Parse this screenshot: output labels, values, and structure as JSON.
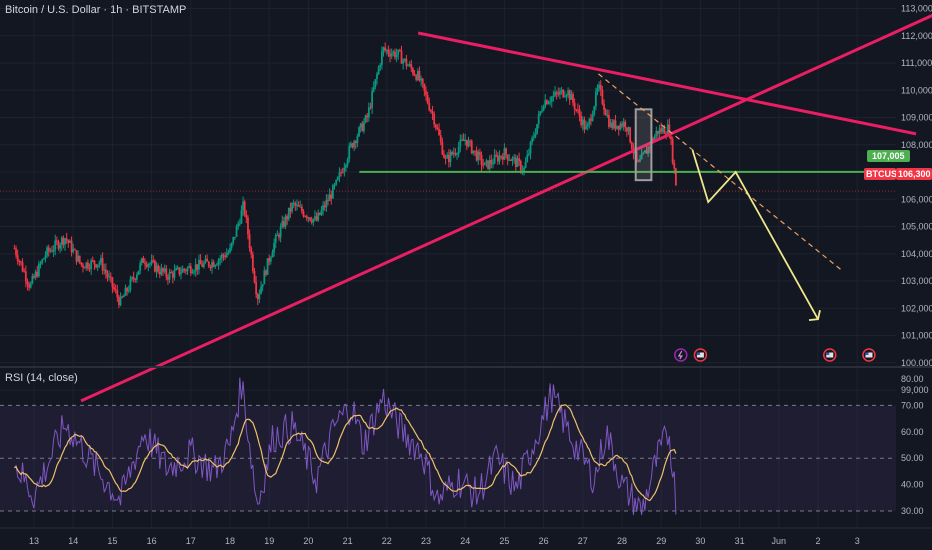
{
  "header": {
    "title": "Bitcoin / U.S. Dollar · 1h · BITSTAMP"
  },
  "rsi_panel": {
    "label": "RSI (14, close)"
  },
  "price_tags": {
    "level_label": "107,005",
    "symbol": "BTCUSD",
    "current_price_label": "106,300"
  },
  "colors": {
    "background": "#131722",
    "up_candle": "#089981",
    "down_candle": "#f23645",
    "trendline": "#e91e63",
    "support_line": "#4caf50",
    "projection": "#f0e68c",
    "projection_dashed": "#f0a060",
    "rsi_line": "#7e57c2",
    "rsi_ma": "#f0c06a"
  },
  "chart_data": [
    {
      "type": "candlestick",
      "title": "Bitcoin / U.S. Dollar · 1h · BITSTAMP",
      "price_axis_ticks": [
        99000,
        100000,
        101000,
        102000,
        103000,
        104000,
        105000,
        106000,
        107000,
        108000,
        109000,
        110000,
        111000,
        112000,
        113000
      ],
      "price_axis_labels": [
        "99,000",
        "100,000",
        "101,000",
        "102,000",
        "103,000",
        "104,000",
        "105,000",
        "106,000",
        "107,000",
        "108,000",
        "109,000",
        "110,000",
        "111,000",
        "112,000",
        "113,000"
      ],
      "ylim": [
        98500,
        113200
      ],
      "x_tick_labels": [
        "13",
        "14",
        "15",
        "16",
        "17",
        "18",
        "19",
        "20",
        "21",
        "22",
        "23",
        "24",
        "25",
        "26",
        "27",
        "28",
        "29",
        "30",
        "31",
        "Jun",
        "2",
        "3"
      ],
      "price_path_waypoints": [
        {
          "t": 12.5,
          "p": 104200
        },
        {
          "t": 12.9,
          "p": 102800
        },
        {
          "t": 13.3,
          "p": 104000
        },
        {
          "t": 13.8,
          "p": 104600
        },
        {
          "t": 14.2,
          "p": 103600
        },
        {
          "t": 14.7,
          "p": 103700
        },
        {
          "t": 15.2,
          "p": 102200
        },
        {
          "t": 15.8,
          "p": 103800
        },
        {
          "t": 16.4,
          "p": 103200
        },
        {
          "t": 17.0,
          "p": 103500
        },
        {
          "t": 17.6,
          "p": 103700
        },
        {
          "t": 18.0,
          "p": 104100
        },
        {
          "t": 18.35,
          "p": 105800
        },
        {
          "t": 18.7,
          "p": 102400
        },
        {
          "t": 19.1,
          "p": 104300
        },
        {
          "t": 19.6,
          "p": 105800
        },
        {
          "t": 20.2,
          "p": 105200
        },
        {
          "t": 20.7,
          "p": 106500
        },
        {
          "t": 21.1,
          "p": 108000
        },
        {
          "t": 21.5,
          "p": 109000
        },
        {
          "t": 21.9,
          "p": 111500
        },
        {
          "t": 22.3,
          "p": 111300
        },
        {
          "t": 22.8,
          "p": 110500
        },
        {
          "t": 23.2,
          "p": 109000
        },
        {
          "t": 23.5,
          "p": 107400
        },
        {
          "t": 24.0,
          "p": 108200
        },
        {
          "t": 24.5,
          "p": 107200
        },
        {
          "t": 25.0,
          "p": 107700
        },
        {
          "t": 25.5,
          "p": 107100
        },
        {
          "t": 26.0,
          "p": 109600
        },
        {
          "t": 26.6,
          "p": 110000
        },
        {
          "t": 27.1,
          "p": 108500
        },
        {
          "t": 27.4,
          "p": 110100
        },
        {
          "t": 27.7,
          "p": 108700
        },
        {
          "t": 28.1,
          "p": 108800
        },
        {
          "t": 28.4,
          "p": 107200
        },
        {
          "t": 28.9,
          "p": 108500
        },
        {
          "t": 29.2,
          "p": 108600
        },
        {
          "t": 29.4,
          "p": 106300
        }
      ],
      "annotations": {
        "falling_trendline": [
          {
            "t": 22.8,
            "p": 112100
          },
          {
            "t": 35.5,
            "p": 108400
          }
        ],
        "rising_trendline": [
          {
            "t": 14.2,
            "p": 98600
          },
          {
            "t": 36.0,
            "p": 112800
          }
        ],
        "support_level": {
          "price": 107005,
          "from_t": 21.3,
          "to_t": 36.0
        },
        "highlight_box": {
          "t0": 28.35,
          "t1": 28.75,
          "p0": 106700,
          "p1": 109300
        },
        "dashed_projection": [
          {
            "t": 27.4,
            "p": 110600
          },
          {
            "t": 33.6,
            "p": 103400
          }
        ],
        "projection_path": [
          {
            "t": 29.8,
            "p": 107800
          },
          {
            "t": 30.2,
            "p": 105900
          },
          {
            "t": 30.9,
            "p": 107000
          },
          {
            "t": 33.0,
            "p": 101600
          }
        ],
        "event_markers_t": [
          29.5,
          30.0,
          33.3,
          34.3
        ]
      }
    },
    {
      "type": "line",
      "title": "RSI (14, close)",
      "ylim": [
        28,
        81
      ],
      "y_tick_labels": [
        "30.00",
        "40.00",
        "50.00",
        "60.00",
        "70.00",
        "80.00"
      ],
      "bands": {
        "upper": 70,
        "middle": 50,
        "lower": 30
      },
      "rsi_waypoints": [
        {
          "t": 12.5,
          "v": 48
        },
        {
          "t": 13.0,
          "v": 36
        },
        {
          "t": 13.8,
          "v": 63
        },
        {
          "t": 14.5,
          "v": 48
        },
        {
          "t": 15.2,
          "v": 34
        },
        {
          "t": 15.8,
          "v": 60
        },
        {
          "t": 16.4,
          "v": 46
        },
        {
          "t": 17.0,
          "v": 52
        },
        {
          "t": 17.6,
          "v": 45
        },
        {
          "t": 18.0,
          "v": 55
        },
        {
          "t": 18.3,
          "v": 79
        },
        {
          "t": 18.7,
          "v": 32
        },
        {
          "t": 19.1,
          "v": 58
        },
        {
          "t": 19.6,
          "v": 62
        },
        {
          "t": 20.2,
          "v": 42
        },
        {
          "t": 20.7,
          "v": 63
        },
        {
          "t": 21.1,
          "v": 70
        },
        {
          "t": 21.4,
          "v": 55
        },
        {
          "t": 21.9,
          "v": 73
        },
        {
          "t": 22.4,
          "v": 60
        },
        {
          "t": 22.9,
          "v": 52
        },
        {
          "t": 23.3,
          "v": 34
        },
        {
          "t": 23.8,
          "v": 42
        },
        {
          "t": 24.3,
          "v": 36
        },
        {
          "t": 24.8,
          "v": 50
        },
        {
          "t": 25.3,
          "v": 38
        },
        {
          "t": 25.8,
          "v": 58
        },
        {
          "t": 26.2,
          "v": 74
        },
        {
          "t": 26.8,
          "v": 55
        },
        {
          "t": 27.3,
          "v": 42
        },
        {
          "t": 27.6,
          "v": 60
        },
        {
          "t": 28.0,
          "v": 40
        },
        {
          "t": 28.5,
          "v": 30
        },
        {
          "t": 28.9,
          "v": 50
        },
        {
          "t": 29.2,
          "v": 60
        },
        {
          "t": 29.4,
          "v": 31
        }
      ]
    }
  ]
}
